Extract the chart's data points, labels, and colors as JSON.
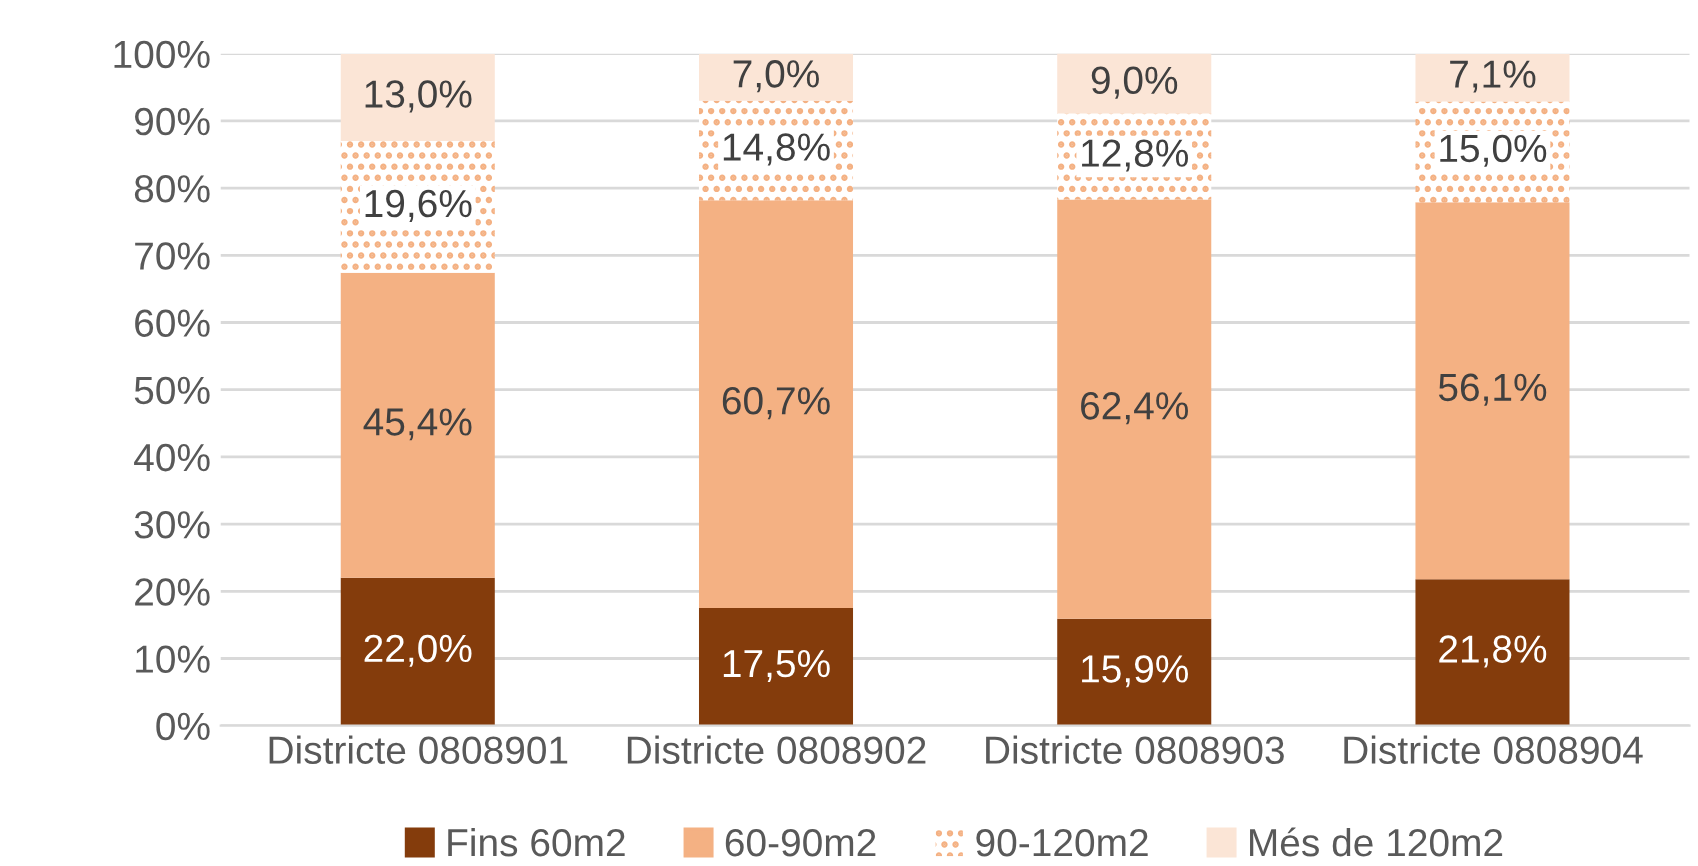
{
  "chart_data": {
    "type": "bar",
    "stacked": true,
    "categories": [
      "Districte 0808901",
      "Districte 0808902",
      "Districte 0808903",
      "Districte 0808904"
    ],
    "series": [
      {
        "name": "Fins 60m2",
        "color": "#843c0c",
        "values": [
          22.0,
          17.5,
          15.9,
          21.8
        ],
        "value_labels": [
          "22,0%",
          "17,5%",
          "15,9%",
          "21,8%"
        ]
      },
      {
        "name": "60-90m2",
        "color": "#f4b183",
        "values": [
          45.4,
          60.7,
          62.4,
          56.1
        ],
        "value_labels": [
          "45,4%",
          "60,7%",
          "62,4%",
          "56,1%"
        ]
      },
      {
        "name": "90-120m2",
        "color": "#f4b183",
        "values": [
          19.6,
          14.8,
          12.8,
          15.0
        ],
        "value_labels": [
          "19,6%",
          "14,8%",
          "12,8%",
          "15,0%"
        ]
      },
      {
        "name": "Més de 120m2",
        "color": "#fbe5d6",
        "values": [
          13.0,
          7.0,
          9.0,
          7.1
        ],
        "value_labels": [
          "13,0%",
          "7,0%",
          "9,0%",
          "7,1%"
        ]
      }
    ],
    "ylim": [
      0,
      100
    ],
    "yticks": [
      {
        "value": 0,
        "label": "0%"
      },
      {
        "value": 10,
        "label": "10%"
      },
      {
        "value": 20,
        "label": "20%"
      },
      {
        "value": 30,
        "label": "30%"
      },
      {
        "value": 40,
        "label": "40%"
      },
      {
        "value": 50,
        "label": "50%"
      },
      {
        "value": 60,
        "label": "60%"
      },
      {
        "value": 70,
        "label": "70%"
      },
      {
        "value": 80,
        "label": "80%"
      },
      {
        "value": 90,
        "label": "90%"
      },
      {
        "value": 100,
        "label": "100%"
      }
    ],
    "grid": "y",
    "legend": "bottom"
  }
}
